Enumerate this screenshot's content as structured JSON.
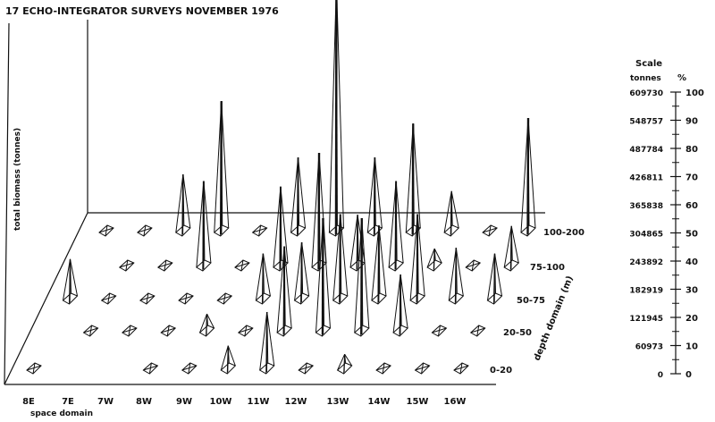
{
  "chart_data": {
    "type": "3d-bar",
    "title": "17  ECHO-INTEGRATOR SURVEYS NOVEMBER 1976",
    "xlabel": "space domain",
    "ylabel": "total biomass (tonnes)",
    "depth_label": "depth domain (m)",
    "scale_title": "Scale",
    "scale_unit_left": "tonnes",
    "scale_unit_right": "%",
    "space_categories": [
      "8E",
      "7E",
      "7W",
      "8W",
      "9W",
      "10W",
      "11W",
      "12W",
      "13W",
      "14W",
      "15W",
      "16W"
    ],
    "depth_categories": [
      "0-20",
      "20-50",
      "50-75",
      "75-100",
      "100-200"
    ],
    "scale_tonnes": [
      "0",
      "60973",
      "121945",
      "182919",
      "243892",
      "304865",
      "365838",
      "426811",
      "487784",
      "548757",
      "609730"
    ],
    "scale_percent": [
      "0",
      "10",
      "20",
      "30",
      "40",
      "50",
      "60",
      "70",
      "80",
      "90",
      "100"
    ],
    "ylim": [
      0,
      100
    ],
    "series": [
      {
        "name": "0-20",
        "values": [
          0,
          null,
          null,
          0,
          0,
          8,
          20,
          0,
          5,
          0,
          0,
          0
        ]
      },
      {
        "name": "20-50",
        "values": [
          null,
          0,
          0,
          0,
          6,
          0,
          30,
          40,
          40,
          20,
          0,
          0
        ]
      },
      {
        "name": "50-75",
        "values": [
          14,
          0,
          0,
          0,
          0,
          16,
          20,
          30,
          26,
          30,
          18,
          16
        ]
      },
      {
        "name": "75-100",
        "values": [
          null,
          0,
          0,
          30,
          0,
          28,
          40,
          18,
          30,
          6,
          0,
          14
        ]
      },
      {
        "name": "100-200",
        "values": [
          0,
          0,
          20,
          46,
          0,
          26,
          88,
          26,
          38,
          14,
          0,
          40
        ]
      }
    ]
  }
}
